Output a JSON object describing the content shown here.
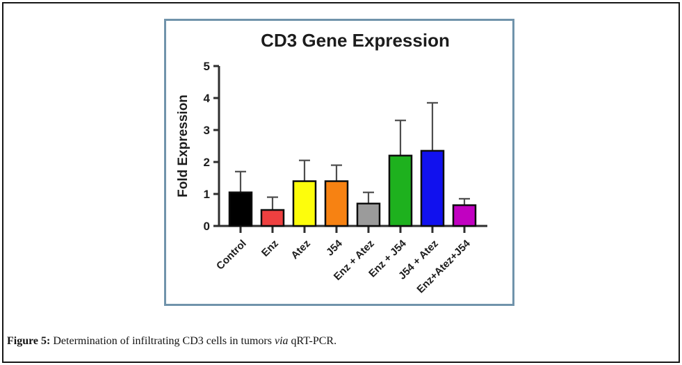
{
  "page": {
    "background": "#ffffff",
    "outer_border_color": "#161616"
  },
  "panel": {
    "border_color": "#7093ab"
  },
  "caption": {
    "label": "Figure 5:",
    "before_italic": " Determination of infiltrating CD3 cells in tumors ",
    "italic_word": "via",
    "after_italic": " qRT-PCR."
  },
  "chart_data": {
    "type": "bar",
    "title": "CD3 Gene Expression",
    "xlabel": "",
    "ylabel": "Fold Expression",
    "ylim": [
      0,
      5
    ],
    "yticks": [
      0,
      1,
      2,
      3,
      4,
      5
    ],
    "grid": false,
    "legend": false,
    "categories": [
      "Control",
      "Enz",
      "Atez",
      "J54",
      "Enz + Atez",
      "Enz + J54",
      "J54 + Atez",
      "Enz+Atez+J54"
    ],
    "values": [
      1.05,
      0.5,
      1.4,
      1.4,
      0.7,
      2.2,
      2.35,
      0.65
    ],
    "errors_upper": [
      0.65,
      0.4,
      0.65,
      0.5,
      0.35,
      1.1,
      1.5,
      0.2
    ],
    "bar_colors": [
      "#000000",
      "#ee4040",
      "#fdfd0c",
      "#f78212",
      "#9b9b9b",
      "#1eb11e",
      "#1111ee",
      "#c101c1"
    ],
    "bar_outline_color": "#0d0d0d",
    "error_bar_color": "#4d4d4d",
    "axis_color": "#2e2e2e"
  }
}
